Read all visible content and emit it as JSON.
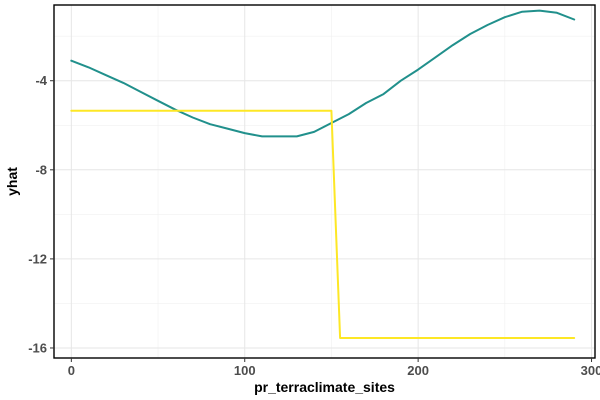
{
  "chart_data": {
    "type": "line",
    "title": "",
    "xlabel": "pr_terraclimate_sites",
    "ylabel": "yhat",
    "xlim": [
      -10,
      302
    ],
    "ylim": [
      -16.45,
      -0.6
    ],
    "x_ticks": [
      0,
      100,
      200,
      300
    ],
    "y_ticks": [
      -16,
      -12,
      -8,
      -4
    ],
    "grid": true,
    "legend": "none",
    "series": [
      {
        "color": "#21908C",
        "x": [
          0,
          10,
          20,
          30,
          40,
          50,
          60,
          70,
          80,
          90,
          100,
          110,
          120,
          130,
          140,
          150,
          160,
          170,
          180,
          190,
          200,
          210,
          220,
          230,
          240,
          250,
          260,
          270,
          280,
          290
        ],
        "y": [
          -3.1,
          -3.4,
          -3.75,
          -4.1,
          -4.5,
          -4.9,
          -5.3,
          -5.65,
          -5.95,
          -6.15,
          -6.35,
          -6.5,
          -6.5,
          -6.5,
          -6.3,
          -5.9,
          -5.5,
          -5.0,
          -4.6,
          -4.0,
          -3.5,
          -2.95,
          -2.4,
          -1.9,
          -1.5,
          -1.15,
          -0.9,
          -0.85,
          -0.95,
          -1.25
        ]
      },
      {
        "color": "#FDE725",
        "x": [
          0,
          150,
          155,
          290
        ],
        "y": [
          -5.35,
          -5.35,
          -15.55,
          -15.55
        ]
      }
    ]
  }
}
